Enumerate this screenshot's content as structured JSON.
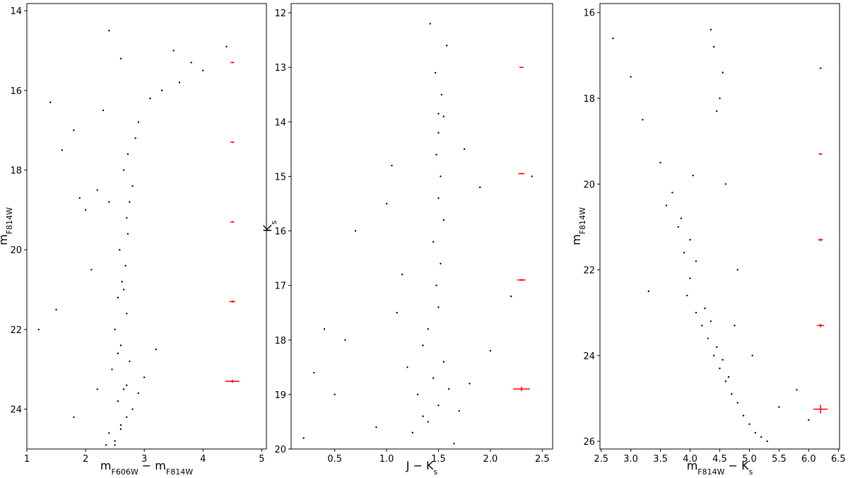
{
  "chart_data": [
    {
      "type": "scatter",
      "x_label": [
        "m",
        "F606W",
        " − m",
        "F814W"
      ],
      "y_label": [
        "m",
        "F814W"
      ],
      "xlim": [
        1,
        5.08
      ],
      "ylim": [
        25,
        13.82
      ],
      "xticks": [
        1,
        2,
        3,
        4,
        5
      ],
      "yticks": [
        14,
        16,
        18,
        20,
        22,
        24
      ],
      "color": "#000000",
      "x": [
        2.5,
        2.6,
        2.7,
        2.55,
        2.65,
        2.45,
        2.75,
        2.6,
        2.5,
        2.7,
        2.8,
        2.55,
        2.62,
        2.68,
        2.4,
        2.9,
        3.0,
        2.35,
        2.58,
        2.72,
        2.7,
        2.75,
        2.8,
        2.65,
        2.72,
        2.85,
        2.2,
        2.4,
        2.0,
        1.9,
        2.3,
        1.6,
        1.4,
        1.8,
        3.3,
        3.6,
        4.0,
        1.2,
        1.5,
        2.1,
        2.6,
        3.1,
        3.5,
        2.9,
        2.4,
        3.8,
        4.4,
        2.2,
        1.8,
        3.2,
        2.65,
        2.55,
        2.7,
        2.6,
        2.5
      ],
      "y": [
        24.8,
        24.5,
        24.2,
        23.8,
        23.5,
        23.0,
        22.8,
        22.4,
        22.0,
        21.6,
        24.0,
        21.2,
        20.8,
        20.4,
        24.6,
        23.6,
        23.2,
        24.9,
        20.0,
        19.6,
        19.2,
        18.8,
        18.4,
        18.0,
        17.6,
        17.2,
        18.5,
        18.8,
        19.0,
        18.7,
        16.5,
        17.5,
        16.3,
        17.0,
        16.0,
        15.8,
        15.5,
        22.0,
        21.5,
        20.5,
        15.2,
        16.2,
        15.0,
        16.8,
        14.5,
        15.3,
        14.9,
        23.5,
        24.2,
        22.5,
        21.0,
        22.6,
        23.4,
        24.4,
        24.9
      ],
      "errorbars": {
        "color": "#ff0000",
        "x": [
          4.5,
          4.5,
          4.5,
          4.5,
          4.5
        ],
        "y": [
          15.3,
          17.3,
          19.3,
          21.3,
          23.3
        ],
        "xerr": [
          0.03,
          0.03,
          0.03,
          0.05,
          0.12
        ],
        "yerr": [
          0.02,
          0.02,
          0.02,
          0.03,
          0.04
        ]
      }
    },
    {
      "type": "scatter",
      "x_label": [
        "J − K",
        "s"
      ],
      "y_label": [
        "K",
        "s"
      ],
      "xlim": [
        0.08,
        2.6
      ],
      "ylim": [
        20,
        11.83
      ],
      "xticks": [
        0.5,
        {
          "value": 1,
          "label": "1.0"
        },
        1.5,
        {
          "value": 2,
          "label": "2.0"
        },
        2.5
      ],
      "yticks": [
        12,
        13,
        14,
        15,
        16,
        17,
        18,
        19,
        20
      ],
      "color": "#000000",
      "x": [
        1.4,
        1.5,
        1.3,
        1.45,
        1.55,
        1.35,
        1.6,
        1.4,
        1.5,
        1.48,
        1.52,
        1.45,
        1.55,
        1.5,
        1.52,
        1.48,
        1.5,
        1.55,
        1.5,
        1.53,
        1.47,
        1.2,
        1.7,
        1.1,
        1.8,
        0.9,
        2.0,
        0.5,
        0.3,
        0.7,
        1.0,
        2.2,
        1.9,
        0.4,
        0.2,
        1.25,
        1.65,
        1.35,
        1.58,
        1.42,
        1.75,
        2.4,
        0.6,
        1.05,
        1.15
      ],
      "y": [
        19.5,
        19.2,
        19.0,
        18.7,
        18.4,
        18.1,
        18.9,
        17.8,
        17.4,
        17.0,
        16.6,
        16.2,
        15.8,
        15.4,
        15.0,
        14.6,
        14.2,
        13.9,
        13.85,
        13.5,
        13.1,
        18.5,
        19.3,
        17.5,
        18.8,
        19.6,
        18.2,
        19.0,
        18.6,
        16.0,
        15.5,
        17.2,
        15.2,
        17.8,
        19.8,
        19.7,
        19.9,
        19.4,
        12.6,
        12.2,
        14.5,
        15.0,
        18.0,
        14.8,
        16.8
      ],
      "errorbars": {
        "color": "#ff0000",
        "x": [
          2.3,
          2.3,
          2.3,
          2.3
        ],
        "y": [
          13.0,
          14.95,
          16.9,
          18.9
        ],
        "xerr": [
          0.02,
          0.03,
          0.04,
          0.08
        ],
        "yerr": [
          0.01,
          0.015,
          0.02,
          0.04
        ]
      }
    },
    {
      "type": "scatter",
      "x_label": [
        "m",
        "F814W",
        " − K",
        "s"
      ],
      "y_label": [
        "m",
        "F814W"
      ],
      "xlim": [
        2.48,
        6.52
      ],
      "ylim": [
        26.18,
        15.79
      ],
      "xticks": [
        2.5,
        {
          "value": 3,
          "label": "3.0"
        },
        3.5,
        {
          "value": 4,
          "label": "4.0"
        },
        4.5,
        {
          "value": 5,
          "label": "5.0"
        },
        5.5,
        {
          "value": 6,
          "label": "6.0"
        },
        6.5
      ],
      "yticks": [
        16,
        18,
        20,
        22,
        24,
        26
      ],
      "color": "#000000",
      "x": [
        3.8,
        3.9,
        4.0,
        3.95,
        4.1,
        4.2,
        4.3,
        4.4,
        4.5,
        4.6,
        4.7,
        4.8,
        4.9,
        5.0,
        5.1,
        5.2,
        5.3,
        4.0,
        4.1,
        4.25,
        4.35,
        4.45,
        4.55,
        4.65,
        4.6,
        4.45,
        4.5,
        4.55,
        4.4,
        4.35,
        3.5,
        3.2,
        3.0,
        2.7,
        3.6,
        3.3,
        5.5,
        5.8,
        6.0,
        4.8,
        3.7,
        3.85,
        4.05,
        4.75,
        5.05
      ],
      "y": [
        21.0,
        21.6,
        22.2,
        22.6,
        23.0,
        23.3,
        23.6,
        24.0,
        24.3,
        24.6,
        24.9,
        25.1,
        25.4,
        25.6,
        25.8,
        25.9,
        26.0,
        21.3,
        21.8,
        22.9,
        23.2,
        23.8,
        24.1,
        24.5,
        20.0,
        18.3,
        18.0,
        17.4,
        16.8,
        16.4,
        19.5,
        18.5,
        17.5,
        16.6,
        20.5,
        22.5,
        25.2,
        24.8,
        25.5,
        22.0,
        20.2,
        20.8,
        19.8,
        23.3,
        24.0
      ],
      "errorbars": {
        "color": "#ff0000",
        "x": [
          6.2,
          6.2,
          6.2,
          6.2,
          6.2
        ],
        "y": [
          17.3,
          19.3,
          21.3,
          23.3,
          25.25
        ],
        "xerr": [
          0.02,
          0.03,
          0.04,
          0.06,
          0.12
        ],
        "yerr": [
          0.02,
          0.02,
          0.03,
          0.04,
          0.1
        ]
      }
    }
  ]
}
